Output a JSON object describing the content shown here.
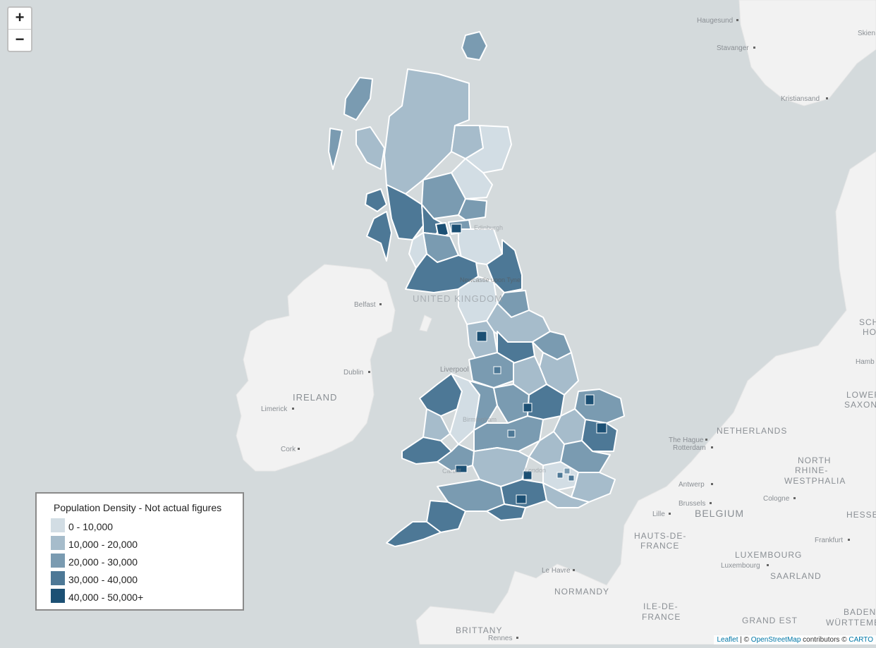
{
  "zoom": {
    "in_label": "+",
    "out_label": "−"
  },
  "colors": {
    "sea": "#d4dadc",
    "land": "#f2f2f2",
    "border": "#ffffff",
    "density": [
      "#d2dde4",
      "#a6bccb",
      "#7a9bb1",
      "#4d7896",
      "#1c5074"
    ]
  },
  "map_labels": {
    "haugesund": "Haugesund",
    "stavanger": "Stavanger",
    "kristiansand": "Kristiansand",
    "skien": "Skien",
    "belfast": "Belfast",
    "dublin": "Dublin",
    "ireland": "IRELAND",
    "limerick": "Limerick",
    "cork": "Cork",
    "united_kingdom": "UNITED KINGDOM",
    "edinburgh": "Edinburgh",
    "newcastle": "Newcastle upon Tyne",
    "liverpool": "Liverpool",
    "birmingham": "Birmingham",
    "cardiff": "Cardiff",
    "london": "London",
    "netherlands": "NETHERLANDS",
    "the_hague": "The Hague",
    "rotterdam": "Rotterdam",
    "antwerp": "Antwerp",
    "brussels": "Brussels",
    "belgium": "BELGIUM",
    "lille": "Lille",
    "hauts_de_france_1": "HAUTS-DE-",
    "hauts_de_france_2": "FRANCE",
    "luxembourg": "LUXEMBOURG",
    "luxembourg_city": "Luxembourg",
    "saarland": "SAARLAND",
    "le_havre": "Le Havre",
    "normandy": "NORMANDY",
    "ile_de_france_1": "ILE-DE-",
    "ile_de_france_2": "FRANCE",
    "brittany": "BRITTANY",
    "rennes": "Rennes",
    "grand_est": "GRAND EST",
    "north_rhine_1": "NORTH",
    "north_rhine_2": "RHINE-",
    "north_rhine_3": "WESTPHALIA",
    "cologne": "Cologne",
    "frankfurt": "Frankfurt",
    "hesse": "HESSE",
    "lower_saxony_1": "LOWER",
    "lower_saxony_2": "SAXONY",
    "hamburg": "Hamb",
    "schleswig_1": "SCH",
    "schleswig_2": "HO",
    "baden_1": "BADEN",
    "baden_2": "WÜRTTEMBE"
  },
  "legend": {
    "title": "Population Density - Not actual figures",
    "items": [
      {
        "label": "0 - 10,000",
        "color": "#d2dde4"
      },
      {
        "label": "10,000 - 20,000",
        "color": "#a6bccb"
      },
      {
        "label": "20,000 - 30,000",
        "color": "#7a9bb1"
      },
      {
        "label": "30,000 - 40,000",
        "color": "#4d7896"
      },
      {
        "label": "40,000 - 50,000+",
        "color": "#1c5074"
      }
    ]
  },
  "attribution": {
    "leaflet": "Leaflet",
    "sep": " | © ",
    "osm": "OpenStreetMap",
    "contrib": " contributors © ",
    "carto": "CARTO"
  }
}
